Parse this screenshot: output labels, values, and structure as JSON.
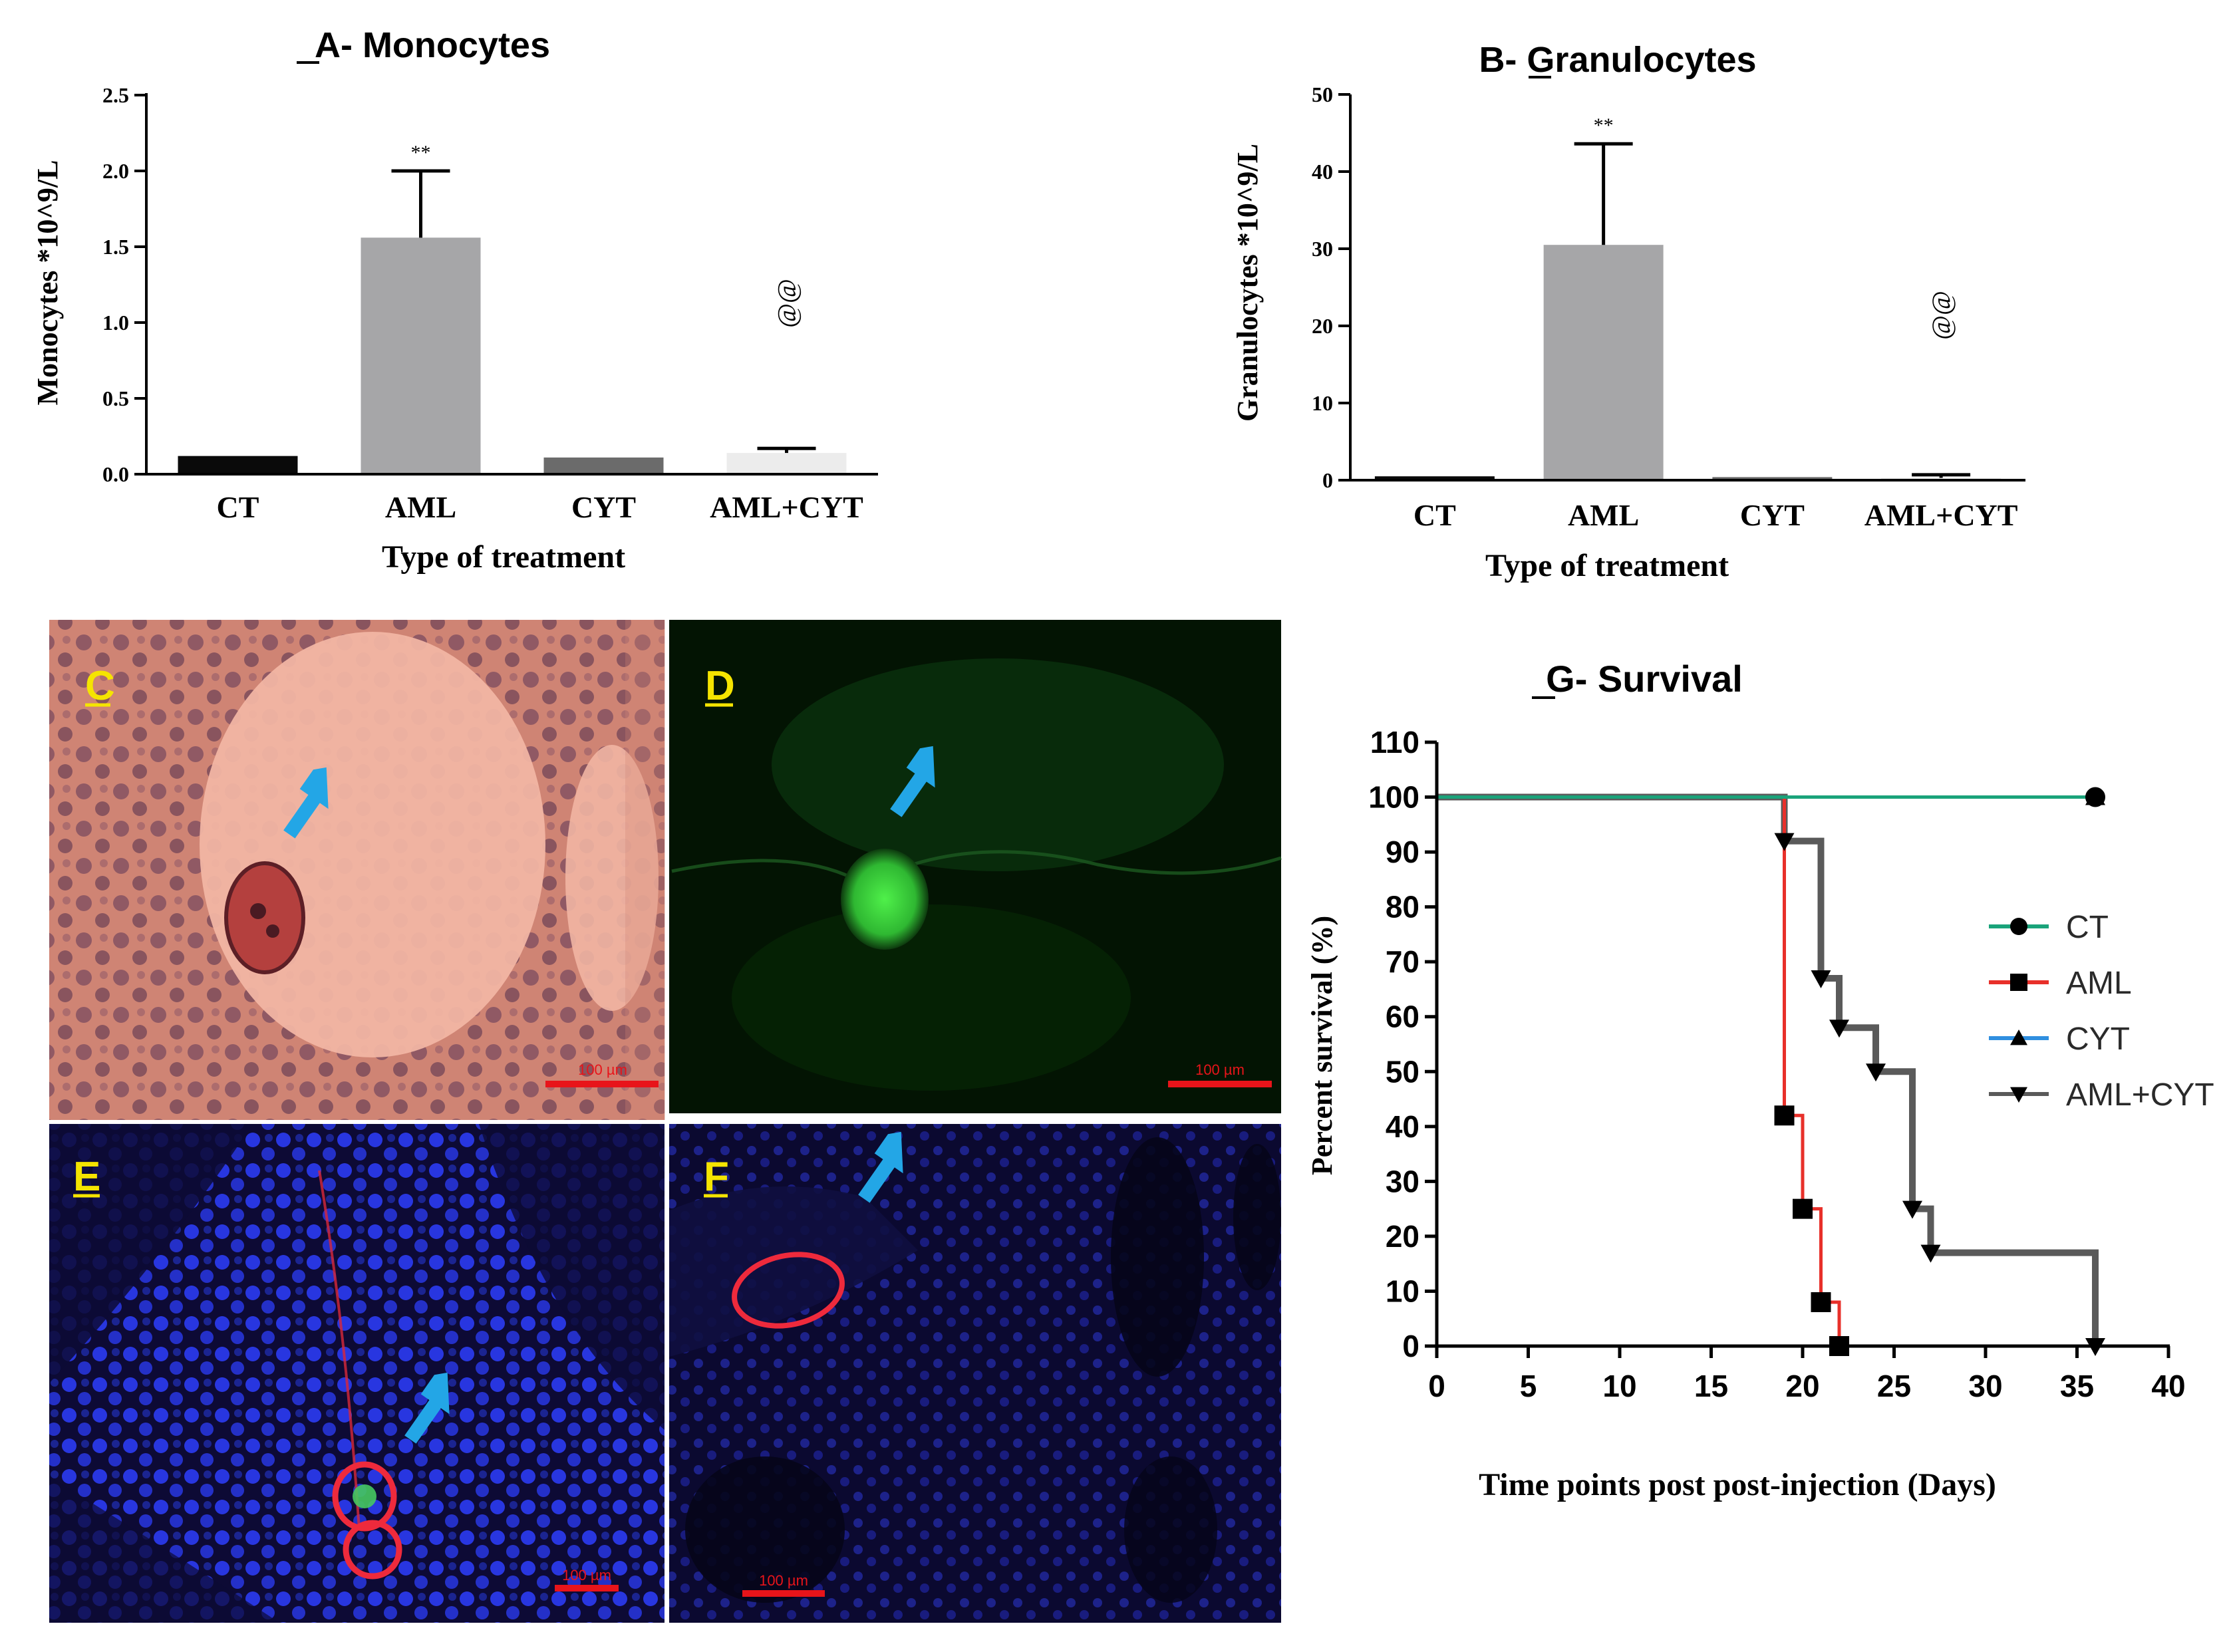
{
  "chart_data": [
    {
      "type": "bar",
      "panel": "A",
      "title": "A- Monocytes",
      "xlabel": "Type of treatment",
      "ylabel": "Monocytes *10^9/L",
      "categories": [
        "CT",
        "AML",
        "CYT",
        "AML+CYT"
      ],
      "values": [
        0.12,
        1.56,
        0.11,
        0.14
      ],
      "error": [
        0.0,
        0.44,
        0.0,
        0.03
      ],
      "annotations": [
        "",
        "**",
        "",
        "@@"
      ],
      "ylim": [
        0,
        2.5
      ],
      "yticks": [
        "0.0",
        "0.5",
        "1.0",
        "1.5",
        "2.0",
        "2.5"
      ],
      "colors": [
        "#0a0a0a",
        "#a6a6a8",
        "#6b6b6b",
        "#ececec"
      ]
    },
    {
      "type": "bar",
      "panel": "B",
      "title": "B- Granulocytes",
      "xlabel": "Type of treatment",
      "ylabel": "Granulocytes *10^9/L",
      "categories": [
        "CT",
        "AML",
        "CYT",
        "AML+CYT"
      ],
      "values": [
        0.5,
        30.5,
        0.4,
        0.3
      ],
      "error": [
        0.0,
        13.1,
        0.0,
        0.4
      ],
      "annotations": [
        "",
        "**",
        "",
        "@@"
      ],
      "ylim": [
        0,
        50
      ],
      "yticks": [
        "0",
        "10",
        "20",
        "30",
        "40",
        "50"
      ],
      "colors": [
        "#0a0a0a",
        "#a6a6a8",
        "#6b6b6b",
        "#ececec"
      ]
    },
    {
      "type": "line",
      "panel": "G",
      "title": "G- Survival",
      "xlabel": "Time points post post-injection (Days)",
      "ylabel": "Percent survival (%)",
      "xlim": [
        0,
        40
      ],
      "ylim": [
        0,
        110
      ],
      "xticks": [
        "0",
        "5",
        "10",
        "15",
        "20",
        "25",
        "30",
        "35",
        "40"
      ],
      "yticks": [
        "0",
        "10",
        "20",
        "30",
        "40",
        "50",
        "60",
        "70",
        "80",
        "90",
        "100",
        "110"
      ],
      "legend_position": "right",
      "series": [
        {
          "name": "CT",
          "color": "#1aa37a",
          "marker": "circle",
          "x": [
            0,
            36
          ],
          "y": [
            100,
            100
          ],
          "markers": [
            [
              36,
              100
            ]
          ]
        },
        {
          "name": "AML",
          "color": "#e8302a",
          "marker": "square",
          "x": [
            0,
            19,
            19,
            20,
            20,
            21,
            21,
            22,
            22
          ],
          "y": [
            100,
            100,
            42,
            42,
            25,
            25,
            8,
            8,
            0
          ],
          "markers": [
            [
              19,
              42
            ],
            [
              20,
              25
            ],
            [
              21,
              8
            ],
            [
              22,
              0
            ]
          ]
        },
        {
          "name": "CYT",
          "color": "#2f8fe0",
          "marker": "triangle-up",
          "x": [
            0,
            36
          ],
          "y": [
            100,
            100
          ],
          "markers": [
            [
              36,
              100
            ]
          ]
        },
        {
          "name": "AML+CYT",
          "color": "#5a5a5a",
          "marker": "triangle-down",
          "x": [
            0,
            19,
            19,
            21,
            21,
            22,
            22,
            24,
            24,
            26,
            26,
            27,
            27,
            36,
            36
          ],
          "y": [
            100,
            100,
            92,
            92,
            67,
            67,
            58,
            58,
            50,
            50,
            25,
            25,
            17,
            17,
            0
          ],
          "markers": [
            [
              19,
              92
            ],
            [
              21,
              67
            ],
            [
              22,
              58
            ],
            [
              24,
              50
            ],
            [
              26,
              25
            ],
            [
              27,
              17
            ],
            [
              36,
              0
            ]
          ]
        }
      ]
    }
  ],
  "images": [
    {
      "panel": "C",
      "label": "C",
      "scale_bar": "100 µm"
    },
    {
      "panel": "D",
      "label": "D",
      "scale_bar": "100 µm"
    },
    {
      "panel": "E",
      "label": "E",
      "scale_bar": "100 µm"
    },
    {
      "panel": "F",
      "label": "F",
      "scale_bar": "100 µm"
    }
  ]
}
